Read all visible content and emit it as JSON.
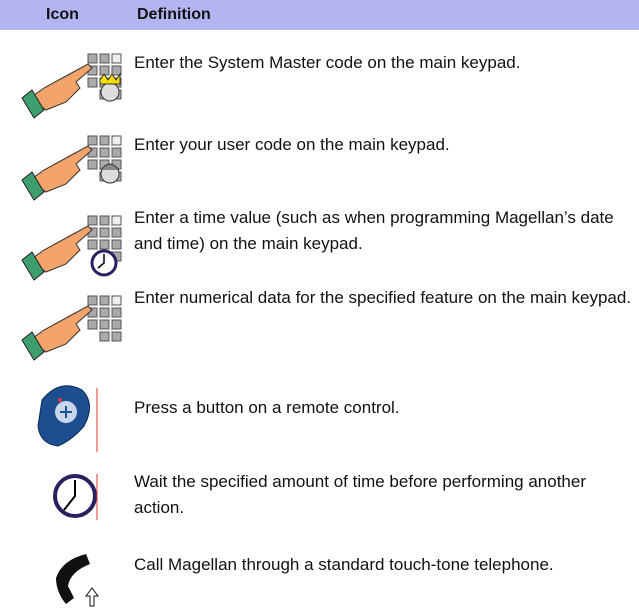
{
  "table": {
    "headers": [
      "Icon",
      "Definition"
    ],
    "rows": [
      {
        "definition": "Enter the System Master code on the main keypad."
      },
      {
        "definition": "Enter your user code on the main keypad."
      },
      {
        "definition": "Enter a time value (such as when programming Magellan’s date and time) on the main keypad."
      },
      {
        "definition": "Enter numerical data for the specified feature on the main keypad."
      },
      {
        "definition": "Press a button on a remote control."
      },
      {
        "definition": "Wait the specified amount of time before performing another action."
      },
      {
        "definition": "Call Magellan through a standard touch-tone telephone."
      }
    ]
  }
}
